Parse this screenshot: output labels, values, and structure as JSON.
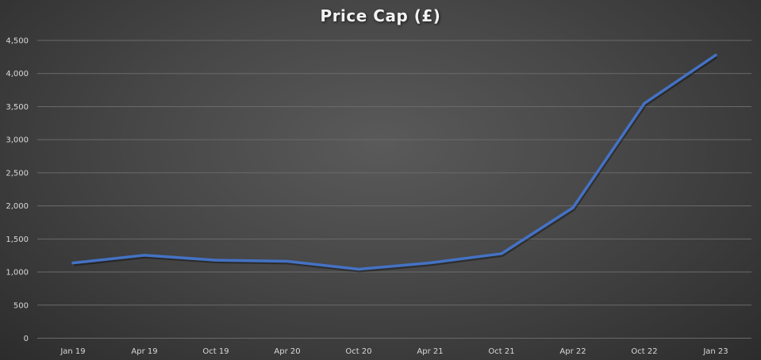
{
  "chart_data": {
    "type": "line",
    "title": "Price Cap (£)",
    "xlabel": "",
    "ylabel": "",
    "categories": [
      "Jan 19",
      "Apr 19",
      "Oct 19",
      "Apr 20",
      "Oct 20",
      "Apr 21",
      "Oct 21",
      "Apr 22",
      "Oct 22",
      "Jan 23"
    ],
    "series": [
      {
        "values": [
          1137,
          1254,
          1179,
          1162,
          1042,
          1138,
          1277,
          1971,
          3549,
          4279
        ],
        "color": "#4472C4"
      }
    ],
    "ylim": [
      0,
      4500
    ],
    "yticks": [
      0,
      500,
      1000,
      1500,
      2000,
      2500,
      3000,
      3500,
      4000,
      4500
    ],
    "ytick_labels": [
      "0",
      "500",
      "1,000",
      "1,500",
      "2,000",
      "2,500",
      "3,000",
      "3,500",
      "4,000",
      "4,500"
    ],
    "grid": true,
    "legend": "none",
    "background": "#3f3f3f",
    "gridline_color": "#6a6a6a"
  }
}
